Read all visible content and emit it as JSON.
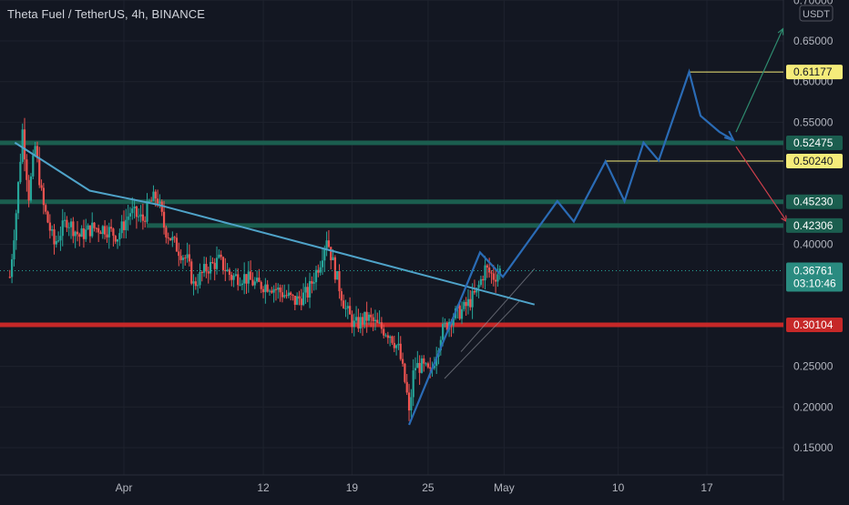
{
  "header": {
    "title": "Theta Fuel / TetherUS, 4h, BINANCE",
    "currency_badge": "USDT"
  },
  "colors": {
    "background": "#131722",
    "grid": "#1e222d",
    "axis_text": "#b2b5be",
    "candle_up": "#26a69a",
    "candle_down": "#ef5350",
    "trendline": "#4fa3c9",
    "projection": "#2a6bb5",
    "support_band": "#1b5e4f",
    "support_red": "#c62828",
    "level_yellow": "#f5ec7a",
    "arrow_up": "#2e8b6f",
    "arrow_down": "#d2404c",
    "price_label": "#2a8b80"
  },
  "chart_data": {
    "type": "candlestick",
    "title": "Theta Fuel / TetherUS, 4h, BINANCE",
    "y_unit": "USDT",
    "ylim": [
      0.13,
      0.7
    ],
    "y_ticks": [
      {
        "value": 0.7,
        "label": "0.70000"
      },
      {
        "value": 0.65,
        "label": "0.65000"
      },
      {
        "value": 0.6,
        "label": "0.60000"
      },
      {
        "value": 0.55,
        "label": "0.55000"
      },
      {
        "value": 0.5,
        "label": "0.50000"
      },
      {
        "value": 0.45,
        "label": "0.45000"
      },
      {
        "value": 0.4,
        "label": "0.40000"
      },
      {
        "value": 0.35,
        "label": "0.35000"
      },
      {
        "value": 0.3,
        "label": "0.30000"
      },
      {
        "value": 0.25,
        "label": "0.25000"
      },
      {
        "value": 0.2,
        "label": "0.20000"
      },
      {
        "value": 0.15,
        "label": "0.15000"
      }
    ],
    "x_ticks": [
      {
        "day": 30,
        "label": "Apr"
      },
      {
        "day": 41,
        "label": "12"
      },
      {
        "day": 48,
        "label": "19"
      },
      {
        "day": 54,
        "label": "25"
      },
      {
        "day": 60,
        "label": "May"
      },
      {
        "day": 69,
        "label": "10"
      },
      {
        "day": 76,
        "label": "17"
      }
    ],
    "x_range_days": [
      21,
      83
    ],
    "horizontal_levels": [
      {
        "value": 0.52475,
        "label": "0.52475",
        "style": "green-band"
      },
      {
        "value": 0.4523,
        "label": "0.45230",
        "style": "green-band"
      },
      {
        "value": 0.42306,
        "label": "0.42306",
        "style": "green-band-short"
      },
      {
        "value": 0.30104,
        "label": "0.30104",
        "style": "red"
      },
      {
        "value": 0.61177,
        "label": "0.61177",
        "style": "yellow"
      },
      {
        "value": 0.5024,
        "label": "0.50240",
        "style": "yellow"
      }
    ],
    "current_price": {
      "value": 0.36761,
      "label": "0.36761",
      "countdown": "03:10:46"
    },
    "trendline": [
      [
        21.4,
        0.525
      ],
      [
        27.3,
        0.466
      ],
      [
        32.6,
        0.449
      ],
      [
        62.4,
        0.326
      ]
    ],
    "projection_path": [
      [
        52.5,
        0.178
      ],
      [
        58.1,
        0.39
      ],
      [
        59.9,
        0.36
      ],
      [
        64.2,
        0.453
      ],
      [
        65.5,
        0.428
      ],
      [
        68.0,
        0.502
      ],
      [
        69.5,
        0.453
      ],
      [
        71.0,
        0.525
      ],
      [
        72.2,
        0.503
      ],
      [
        74.6,
        0.612
      ],
      [
        75.5,
        0.558
      ],
      [
        77.0,
        0.538
      ],
      [
        78.1,
        0.528
      ]
    ],
    "arrows": [
      {
        "from": [
          78.3,
          0.538
        ],
        "to": [
          82.0,
          0.665
        ],
        "direction": "up"
      },
      {
        "from": [
          78.3,
          0.52
        ],
        "to": [
          82.3,
          0.428
        ],
        "direction": "down"
      }
    ],
    "wedge_lines": [
      [
        [
          55.3,
          0.235
        ],
        [
          61.2,
          0.33
        ]
      ],
      [
        [
          56.6,
          0.268
        ],
        [
          62.4,
          0.37
        ]
      ]
    ],
    "price_keypoints": [
      [
        21.0,
        0.36
      ],
      [
        21.5,
        0.44
      ],
      [
        22.0,
        0.54
      ],
      [
        22.5,
        0.46
      ],
      [
        23.0,
        0.52
      ],
      [
        23.6,
        0.45
      ],
      [
        24.5,
        0.4
      ],
      [
        25.5,
        0.43
      ],
      [
        26.5,
        0.41
      ],
      [
        27.5,
        0.42
      ],
      [
        28.5,
        0.42
      ],
      [
        29.5,
        0.41
      ],
      [
        30.5,
        0.44
      ],
      [
        31.5,
        0.43
      ],
      [
        32.0,
        0.45
      ],
      [
        32.6,
        0.46
      ],
      [
        33.2,
        0.42
      ],
      [
        34.0,
        0.4
      ],
      [
        35.0,
        0.38
      ],
      [
        35.5,
        0.35
      ],
      [
        36.5,
        0.37
      ],
      [
        37.5,
        0.38
      ],
      [
        38.5,
        0.36
      ],
      [
        39.5,
        0.36
      ],
      [
        40.5,
        0.35
      ],
      [
        41.5,
        0.35
      ],
      [
        42.5,
        0.34
      ],
      [
        43.5,
        0.33
      ],
      [
        44.5,
        0.34
      ],
      [
        45.5,
        0.38
      ],
      [
        46.0,
        0.41
      ],
      [
        46.6,
        0.37
      ],
      [
        47.5,
        0.32
      ],
      [
        48.2,
        0.3
      ],
      [
        49.2,
        0.31
      ],
      [
        50.0,
        0.3
      ],
      [
        51.0,
        0.29
      ],
      [
        51.7,
        0.27
      ],
      [
        52.3,
        0.22
      ],
      [
        52.5,
        0.19
      ],
      [
        52.9,
        0.25
      ],
      [
        53.5,
        0.25
      ],
      [
        54.2,
        0.24
      ],
      [
        55.0,
        0.29
      ],
      [
        55.8,
        0.31
      ],
      [
        56.8,
        0.32
      ],
      [
        57.8,
        0.34
      ],
      [
        58.5,
        0.37
      ],
      [
        59.2,
        0.36
      ],
      [
        59.8,
        0.37
      ]
    ]
  }
}
